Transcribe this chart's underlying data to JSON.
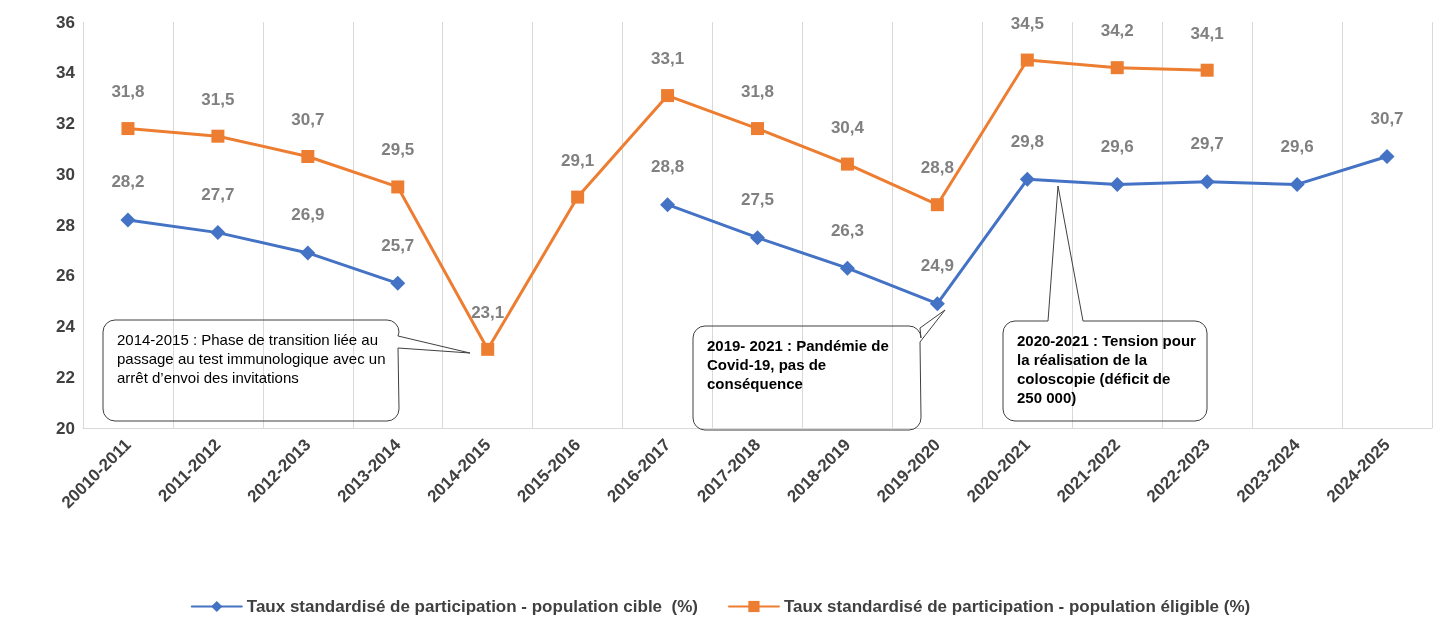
{
  "chart_data": {
    "type": "line",
    "categories": [
      "20010-2011",
      "2011-2012",
      "2012-2013",
      "2013-2014",
      "2014-2015",
      "2015-2016",
      "2016-2017",
      "2017-2018",
      "2018-2019",
      "2019-2020",
      "2020-2021",
      "2021-2022",
      "2022-2023",
      "2023-2024",
      "2024-2025"
    ],
    "series": [
      {
        "name": "Taux standardisé de participation - population cible  (%)",
        "color": "#4472c4",
        "marker": "diamond",
        "values": [
          28.2,
          27.7,
          26.9,
          25.7,
          null,
          null,
          28.8,
          27.5,
          26.3,
          24.9,
          29.8,
          29.6,
          29.7,
          29.6,
          30.7
        ],
        "value_labels": [
          "28,2",
          "27,7",
          "26,9",
          "25,7",
          null,
          null,
          "28,8",
          "27,5",
          "26,3",
          "24,9",
          "29,8",
          "29,6",
          "29,7",
          "29,6",
          "30,7"
        ]
      },
      {
        "name": "Taux standardisé de participation - population éligible (%)",
        "color": "#ed7d31",
        "marker": "square",
        "values": [
          31.8,
          31.5,
          30.7,
          29.5,
          23.1,
          29.1,
          33.1,
          31.8,
          30.4,
          28.8,
          34.5,
          34.2,
          34.1,
          null,
          null
        ],
        "value_labels": [
          "31,8",
          "31,5",
          "30,7",
          "29,5",
          "23,1",
          "29,1",
          "33,1",
          "31,8",
          "30,4",
          "28,8",
          "34,5",
          "34,2",
          "34,1",
          null,
          null
        ]
      }
    ],
    "ylim": [
      20,
      36
    ],
    "yticks": [
      20,
      22,
      24,
      26,
      28,
      30,
      32,
      34,
      36
    ],
    "grid": "x",
    "legend": "bottom",
    "annotations": [
      "2014-2015 : Phase de transition liée au passage au test immunologique avec un arrêt d’envoi des invitations",
      "2019- 2021  : Pandémie de Covid-19, pas de conséquence",
      "2020-2021 : Tension pour la réalisation de la coloscopie (déficit de 250 000)"
    ]
  }
}
